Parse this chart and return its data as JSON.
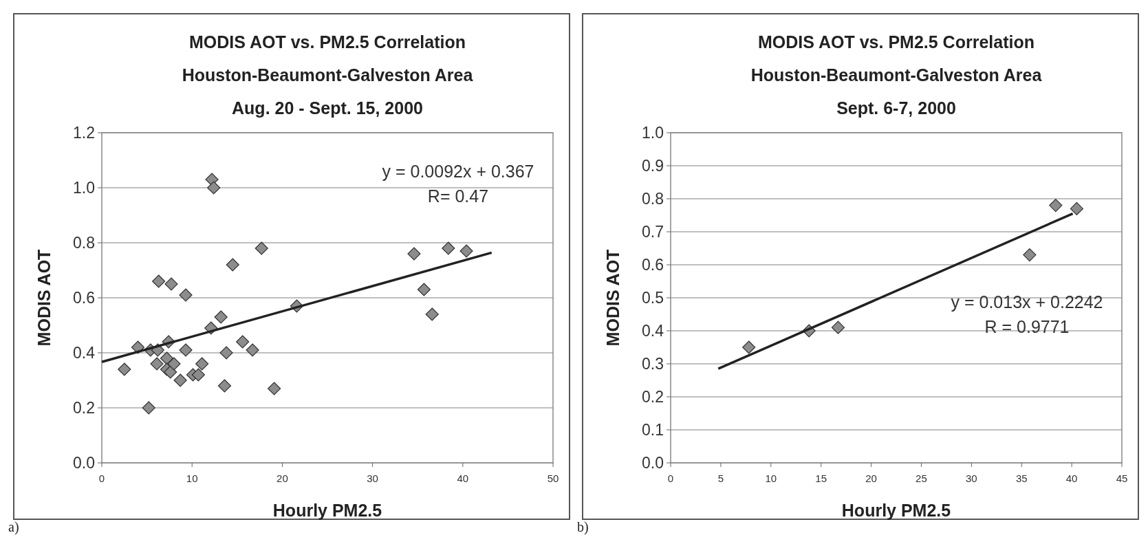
{
  "chart_data": [
    {
      "type": "scatter",
      "title": "MODIS AOT vs. PM2.5 Correlation\nHouston-Beaumont-Galveston Area\nAug. 20 - Sept. 15, 2000",
      "xlabel": "Hourly PM2.5",
      "ylabel": "MODIS AOT",
      "xlim": [
        0,
        50
      ],
      "xticks": [
        0,
        10,
        20,
        30,
        40,
        50
      ],
      "ylim": [
        0,
        1.2
      ],
      "yticks": [
        {
          "value": 0,
          "label": "0.0"
        },
        {
          "value": 0.2,
          "label": "0.2"
        },
        {
          "value": 0.4,
          "label": "0.4"
        },
        {
          "value": 0.6,
          "label": "0.6"
        },
        {
          "value": 0.8,
          "label": "0.8"
        },
        {
          "value": 1,
          "label": "1.0"
        },
        {
          "value": 1.2,
          "label": "1.2"
        }
      ],
      "grid": "y",
      "series": [
        {
          "marker": "diamond",
          "color": "#8c8c8c",
          "x": [
            2.5,
            4.0,
            5.4,
            5.2,
            6.2,
            6.1,
            6.3,
            7.2,
            7.4,
            7.2,
            7.6,
            8.0,
            7.7,
            8.7,
            9.3,
            9.3,
            10.1,
            10.7,
            11.1,
            12.1,
            12.2,
            12.4,
            13.2,
            13.8,
            13.6,
            14.5,
            15.6,
            16.7,
            17.7,
            19.1,
            21.6,
            34.6,
            35.7,
            36.6,
            38.4,
            40.4
          ],
          "values": [
            0.34,
            0.42,
            0.41,
            0.2,
            0.41,
            0.36,
            0.66,
            0.38,
            0.44,
            0.34,
            0.33,
            0.36,
            0.65,
            0.3,
            0.41,
            0.61,
            0.32,
            0.32,
            0.36,
            0.49,
            1.03,
            1.0,
            0.53,
            0.4,
            0.28,
            0.72,
            0.44,
            0.41,
            0.78,
            0.27,
            0.57,
            0.76,
            0.63,
            0.54,
            0.78,
            0.77
          ]
        },
        {
          "type": "line",
          "color": "#222222",
          "x": [
            0,
            43.2
          ],
          "values": [
            0.367,
            0.764
          ]
        }
      ],
      "annotations": [
        "y = 0.0092x + 0.367",
        "R= 0.47",
        "a)"
      ]
    },
    {
      "type": "scatter",
      "title": "MODIS AOT vs. PM2.5 Correlation\nHouston-Beaumont-Galveston Area\nSept. 6-7, 2000",
      "xlabel": "Hourly PM2.5",
      "ylabel": "MODIS AOT",
      "xlim": [
        0,
        45
      ],
      "xticks": [
        0,
        5,
        10,
        15,
        20,
        25,
        30,
        35,
        40,
        45
      ],
      "ylim": [
        0,
        1
      ],
      "yticks": [
        {
          "value": 0,
          "label": "0.0"
        },
        {
          "value": 0.1,
          "label": "0.1"
        },
        {
          "value": 0.2,
          "label": "0.2"
        },
        {
          "value": 0.3,
          "label": "0.3"
        },
        {
          "value": 0.4,
          "label": "0.4"
        },
        {
          "value": 0.5,
          "label": "0.5"
        },
        {
          "value": 0.6,
          "label": "0.6"
        },
        {
          "value": 0.7,
          "label": "0.7"
        },
        {
          "value": 0.8,
          "label": "0.8"
        },
        {
          "value": 0.9,
          "label": "0.9"
        },
        {
          "value": 1,
          "label": "1.0"
        }
      ],
      "grid": "y",
      "series": [
        {
          "marker": "diamond",
          "color": "#8c8c8c",
          "x": [
            7.8,
            13.8,
            16.7,
            35.8,
            38.4,
            40.5
          ],
          "values": [
            0.35,
            0.4,
            0.41,
            0.63,
            0.78,
            0.77
          ]
        },
        {
          "type": "line",
          "color": "#222222",
          "x": [
            4.75,
            40.1
          ],
          "values": [
            0.285,
            0.755
          ]
        }
      ],
      "annotations": [
        "y = 0.013x + 0.2242",
        "R   = 0.9771",
        "b)"
      ]
    }
  ]
}
